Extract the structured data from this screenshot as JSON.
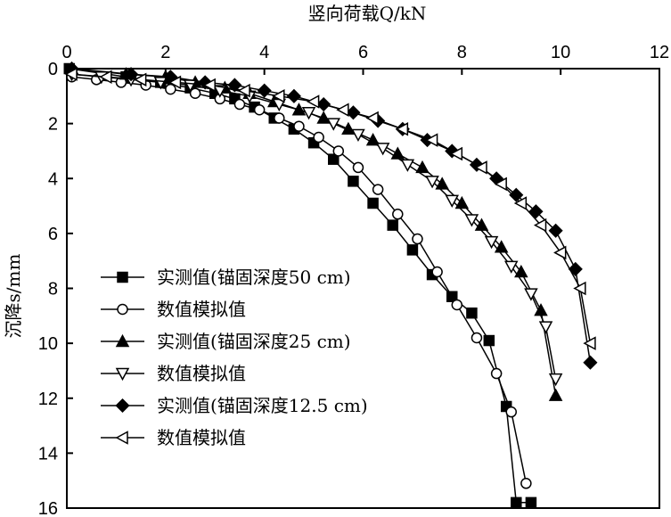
{
  "chart_data": {
    "type": "line",
    "title": "",
    "xlabel": "竖向荷载Q/kN",
    "ylabel": "沉降s/mm",
    "xlim": [
      0,
      12
    ],
    "ylim": [
      0,
      16
    ],
    "y_inverted": true,
    "x_axis_position": "top",
    "xticks": [
      "0",
      "2",
      "4",
      "6",
      "8",
      "10",
      "12"
    ],
    "yticks": [
      "0",
      "2",
      "4",
      "6",
      "8",
      "10",
      "12",
      "14",
      "16"
    ],
    "grid": false,
    "legend_position": "left-middle",
    "series": [
      {
        "name": "实测值(锚固深度50 cm)",
        "marker": "square-filled",
        "x": [
          0.05,
          1.2,
          1.9,
          2.5,
          3.0,
          3.4,
          3.8,
          4.2,
          4.6,
          5.0,
          5.4,
          5.8,
          6.2,
          6.6,
          7.0,
          7.4,
          7.8,
          8.2,
          8.55,
          8.9,
          9.1,
          9.4
        ],
        "y": [
          0.0,
          0.3,
          0.5,
          0.7,
          0.9,
          1.1,
          1.4,
          1.8,
          2.2,
          2.7,
          3.3,
          4.1,
          4.9,
          5.7,
          6.6,
          7.5,
          8.3,
          8.9,
          9.9,
          12.3,
          15.8,
          15.8
        ]
      },
      {
        "name": "数值模拟值",
        "marker": "circle-open",
        "x": [
          0.1,
          0.6,
          1.1,
          1.6,
          2.1,
          2.6,
          3.1,
          3.5,
          3.9,
          4.3,
          4.7,
          5.1,
          5.5,
          5.9,
          6.3,
          6.7,
          7.1,
          7.5,
          7.9,
          8.3,
          8.7,
          9.0,
          9.3
        ],
        "y": [
          0.3,
          0.4,
          0.5,
          0.6,
          0.75,
          0.9,
          1.1,
          1.3,
          1.5,
          1.8,
          2.1,
          2.5,
          3.0,
          3.6,
          4.4,
          5.3,
          6.2,
          7.4,
          8.6,
          9.8,
          11.1,
          12.5,
          15.1
        ]
      },
      {
        "name": "实测值(锚固深度25 cm)",
        "marker": "triangle-up-filled",
        "x": [
          0.1,
          1.2,
          2.0,
          2.6,
          3.2,
          3.7,
          4.2,
          4.7,
          5.2,
          5.7,
          6.2,
          6.7,
          7.2,
          7.6,
          8.0,
          8.4,
          8.8,
          9.2,
          9.6,
          9.9
        ],
        "y": [
          0.0,
          0.2,
          0.3,
          0.5,
          0.7,
          0.9,
          1.2,
          1.5,
          1.8,
          2.2,
          2.6,
          3.1,
          3.6,
          4.2,
          4.9,
          5.7,
          6.5,
          7.4,
          8.8,
          11.9
        ]
      },
      {
        "name": "数值模拟值",
        "marker": "triangle-down-open",
        "x": [
          0.1,
          0.7,
          1.3,
          1.9,
          2.5,
          3.1,
          3.7,
          4.3,
          4.9,
          5.4,
          5.9,
          6.4,
          6.9,
          7.4,
          7.8,
          8.2,
          8.6,
          9.0,
          9.4,
          9.7,
          9.9
        ],
        "y": [
          0.2,
          0.3,
          0.4,
          0.5,
          0.6,
          0.8,
          1.0,
          1.3,
          1.6,
          2.0,
          2.4,
          2.9,
          3.5,
          4.1,
          4.8,
          5.5,
          6.3,
          7.2,
          8.2,
          9.4,
          11.3
        ]
      },
      {
        "name": "实测值(锚固深度12.5 cm)",
        "marker": "diamond-filled",
        "x": [
          0.1,
          1.3,
          2.1,
          2.8,
          3.4,
          4.0,
          4.6,
          5.2,
          5.8,
          6.3,
          6.8,
          7.3,
          7.8,
          8.3,
          8.7,
          9.1,
          9.5,
          9.9,
          10.3,
          10.6
        ],
        "y": [
          0.0,
          0.2,
          0.3,
          0.5,
          0.6,
          0.8,
          1.0,
          1.3,
          1.6,
          1.9,
          2.2,
          2.6,
          3.0,
          3.5,
          4.0,
          4.6,
          5.2,
          5.9,
          7.3,
          10.7
        ]
      },
      {
        "name": "数值模拟值",
        "marker": "triangle-left-open",
        "x": [
          0.1,
          0.8,
          1.5,
          2.2,
          2.9,
          3.6,
          4.3,
          5.0,
          5.6,
          6.2,
          6.8,
          7.4,
          7.9,
          8.4,
          8.8,
          9.2,
          9.6,
          10.0,
          10.4,
          10.6
        ],
        "y": [
          0.2,
          0.3,
          0.4,
          0.5,
          0.6,
          0.8,
          1.0,
          1.2,
          1.5,
          1.8,
          2.2,
          2.6,
          3.1,
          3.6,
          4.2,
          4.9,
          5.7,
          6.7,
          8.0,
          10.0
        ]
      }
    ]
  }
}
